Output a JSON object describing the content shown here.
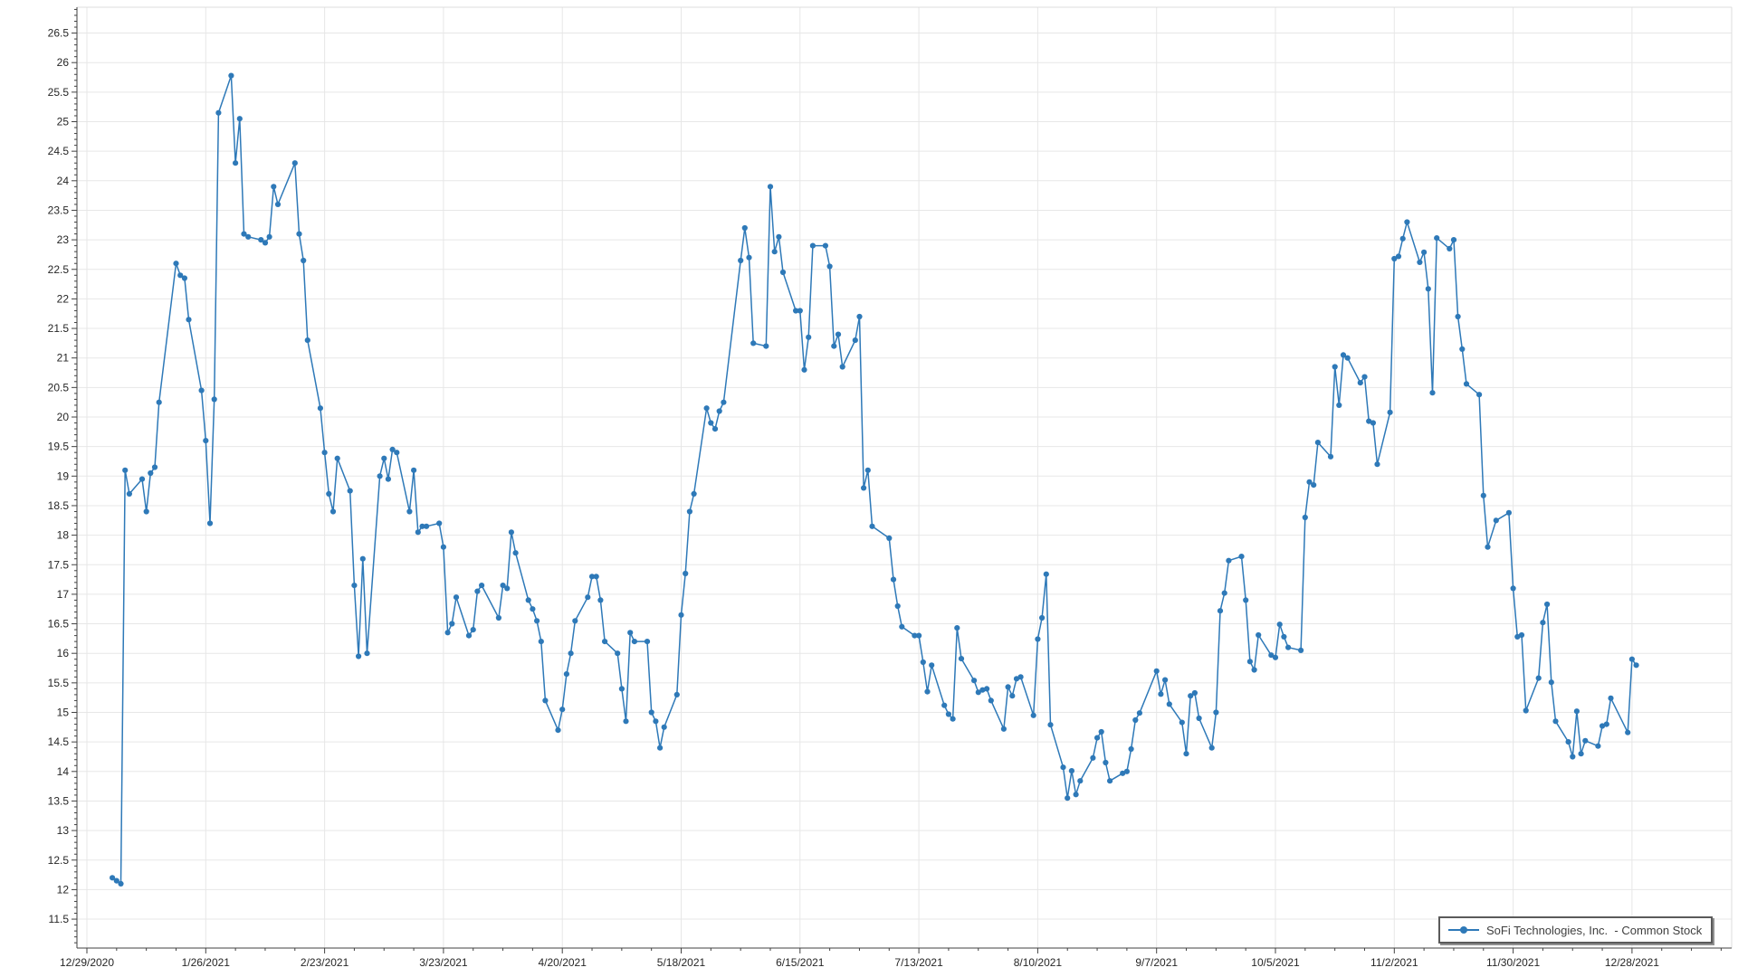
{
  "chart_data": {
    "type": "line",
    "title": "",
    "xlabel": "",
    "ylabel": "",
    "grid": true,
    "legend_position": "bottom-right",
    "x_axis": {
      "tick_labels": [
        "12/29/2020",
        "1/26/2021",
        "2/23/2021",
        "3/23/2021",
        "4/20/2021",
        "5/18/2021",
        "6/15/2021",
        "7/13/2021",
        "8/10/2021",
        "9/7/2021",
        "10/5/2021",
        "11/2/2021",
        "11/30/2021",
        "12/28/2021"
      ],
      "major_tick_interval_days": 28,
      "minor_tick_interval_days": 7
    },
    "y_axis": {
      "label_min": 11.5,
      "label_max": 26.5,
      "label_step": 0.5,
      "minor_tick_step": 0.1,
      "ylim": [
        11.0,
        27.05
      ]
    },
    "series": [
      {
        "name": "SoFi Technologies, Inc.  - Common Stock",
        "color": "#2E79B8",
        "marker": "circle",
        "points": [
          [
            "1/4/2021",
            12.2
          ],
          [
            "1/5/2021",
            12.15
          ],
          [
            "1/6/2021",
            12.1
          ],
          [
            "1/7/2021",
            19.1
          ],
          [
            "1/8/2021",
            18.7
          ],
          [
            "1/11/2021",
            18.95
          ],
          [
            "1/12/2021",
            18.4
          ],
          [
            "1/13/2021",
            19.05
          ],
          [
            "1/14/2021",
            19.15
          ],
          [
            "1/15/2021",
            20.25
          ],
          [
            "1/19/2021",
            22.6
          ],
          [
            "1/20/2021",
            22.4
          ],
          [
            "1/21/2021",
            22.35
          ],
          [
            "1/22/2021",
            21.65
          ],
          [
            "1/25/2021",
            20.45
          ],
          [
            "1/26/2021",
            19.6
          ],
          [
            "1/27/2021",
            18.2
          ],
          [
            "1/28/2021",
            20.3
          ],
          [
            "1/29/2021",
            25.15
          ],
          [
            "2/1/2021",
            25.78
          ],
          [
            "2/2/2021",
            24.3
          ],
          [
            "2/3/2021",
            25.05
          ],
          [
            "2/4/2021",
            23.1
          ],
          [
            "2/5/2021",
            23.05
          ],
          [
            "2/8/2021",
            23.0
          ],
          [
            "2/9/2021",
            22.95
          ],
          [
            "2/10/2021",
            23.05
          ],
          [
            "2/11/2021",
            23.9
          ],
          [
            "2/12/2021",
            23.6
          ],
          [
            "2/16/2021",
            24.3
          ],
          [
            "2/17/2021",
            23.1
          ],
          [
            "2/18/2021",
            22.65
          ],
          [
            "2/19/2021",
            21.3
          ],
          [
            "2/22/2021",
            20.15
          ],
          [
            "2/23/2021",
            19.4
          ],
          [
            "2/24/2021",
            18.7
          ],
          [
            "2/25/2021",
            18.4
          ],
          [
            "2/26/2021",
            19.3
          ],
          [
            "3/1/2021",
            18.75
          ],
          [
            "3/2/2021",
            17.15
          ],
          [
            "3/3/2021",
            15.95
          ],
          [
            "3/4/2021",
            17.6
          ],
          [
            "3/5/2021",
            16.0
          ],
          [
            "3/8/2021",
            19.0
          ],
          [
            "3/9/2021",
            19.3
          ],
          [
            "3/10/2021",
            18.95
          ],
          [
            "3/11/2021",
            19.45
          ],
          [
            "3/12/2021",
            19.4
          ],
          [
            "3/15/2021",
            18.4
          ],
          [
            "3/16/2021",
            19.1
          ],
          [
            "3/17/2021",
            18.05
          ],
          [
            "3/18/2021",
            18.15
          ],
          [
            "3/19/2021",
            18.15
          ],
          [
            "3/22/2021",
            18.2
          ],
          [
            "3/23/2021",
            17.8
          ],
          [
            "3/24/2021",
            16.35
          ],
          [
            "3/25/2021",
            16.5
          ],
          [
            "3/26/2021",
            16.95
          ],
          [
            "3/29/2021",
            16.3
          ],
          [
            "3/30/2021",
            16.4
          ],
          [
            "3/31/2021",
            17.05
          ],
          [
            "4/1/2021",
            17.15
          ],
          [
            "4/5/2021",
            16.6
          ],
          [
            "4/6/2021",
            17.15
          ],
          [
            "4/7/2021",
            17.1
          ],
          [
            "4/8/2021",
            18.05
          ],
          [
            "4/9/2021",
            17.7
          ],
          [
            "4/12/2021",
            16.9
          ],
          [
            "4/13/2021",
            16.75
          ],
          [
            "4/14/2021",
            16.55
          ],
          [
            "4/15/2021",
            16.2
          ],
          [
            "4/16/2021",
            15.2
          ],
          [
            "4/19/2021",
            14.7
          ],
          [
            "4/20/2021",
            15.05
          ],
          [
            "4/21/2021",
            15.65
          ],
          [
            "4/22/2021",
            16.0
          ],
          [
            "4/23/2021",
            16.55
          ],
          [
            "4/26/2021",
            16.95
          ],
          [
            "4/27/2021",
            17.3
          ],
          [
            "4/28/2021",
            17.3
          ],
          [
            "4/29/2021",
            16.9
          ],
          [
            "4/30/2021",
            16.2
          ],
          [
            "5/3/2021",
            16.0
          ],
          [
            "5/4/2021",
            15.4
          ],
          [
            "5/5/2021",
            14.85
          ],
          [
            "5/6/2021",
            16.35
          ],
          [
            "5/7/2021",
            16.2
          ],
          [
            "5/10/2021",
            16.2
          ],
          [
            "5/11/2021",
            15.0
          ],
          [
            "5/12/2021",
            14.85
          ],
          [
            "5/13/2021",
            14.4
          ],
          [
            "5/14/2021",
            14.75
          ],
          [
            "5/17/2021",
            15.3
          ],
          [
            "5/18/2021",
            16.65
          ],
          [
            "5/19/2021",
            17.35
          ],
          [
            "5/20/2021",
            18.4
          ],
          [
            "5/21/2021",
            18.7
          ],
          [
            "5/24/2021",
            20.15
          ],
          [
            "5/25/2021",
            19.9
          ],
          [
            "5/26/2021",
            19.8
          ],
          [
            "5/27/2021",
            20.1
          ],
          [
            "5/28/2021",
            20.25
          ],
          [
            "6/1/2021",
            22.65
          ],
          [
            "6/2/2021",
            23.2
          ],
          [
            "6/3/2021",
            22.7
          ],
          [
            "6/4/2021",
            21.25
          ],
          [
            "6/7/2021",
            21.2
          ],
          [
            "6/8/2021",
            23.9
          ],
          [
            "6/9/2021",
            22.8
          ],
          [
            "6/10/2021",
            23.05
          ],
          [
            "6/11/2021",
            22.45
          ],
          [
            "6/14/2021",
            21.8
          ],
          [
            "6/15/2021",
            21.8
          ],
          [
            "6/16/2021",
            20.8
          ],
          [
            "6/17/2021",
            21.35
          ],
          [
            "6/18/2021",
            22.9
          ],
          [
            "6/21/2021",
            22.9
          ],
          [
            "6/22/2021",
            22.55
          ],
          [
            "6/23/2021",
            21.2
          ],
          [
            "6/24/2021",
            21.4
          ],
          [
            "6/25/2021",
            20.85
          ],
          [
            "6/28/2021",
            21.3
          ],
          [
            "6/29/2021",
            21.7
          ],
          [
            "6/30/2021",
            18.8
          ],
          [
            "7/1/2021",
            19.1
          ],
          [
            "7/2/2021",
            18.15
          ],
          [
            "7/6/2021",
            17.95
          ],
          [
            "7/7/2021",
            17.25
          ],
          [
            "7/8/2021",
            16.8
          ],
          [
            "7/9/2021",
            16.45
          ],
          [
            "7/12/2021",
            16.3
          ],
          [
            "7/13/2021",
            16.3
          ],
          [
            "7/14/2021",
            15.85
          ],
          [
            "7/15/2021",
            15.35
          ],
          [
            "7/16/2021",
            15.8
          ],
          [
            "7/19/2021",
            15.12
          ],
          [
            "7/20/2021",
            14.97
          ],
          [
            "7/21/2021",
            14.89
          ],
          [
            "7/22/2021",
            16.43
          ],
          [
            "7/23/2021",
            15.91
          ],
          [
            "7/26/2021",
            15.54
          ],
          [
            "7/27/2021",
            15.34
          ],
          [
            "7/28/2021",
            15.38
          ],
          [
            "7/29/2021",
            15.4
          ],
          [
            "7/30/2021",
            15.2
          ],
          [
            "8/2/2021",
            14.72
          ],
          [
            "8/3/2021",
            15.43
          ],
          [
            "8/4/2021",
            15.28
          ],
          [
            "8/5/2021",
            15.57
          ],
          [
            "8/6/2021",
            15.6
          ],
          [
            "8/9/2021",
            14.95
          ],
          [
            "8/10/2021",
            16.24
          ],
          [
            "8/11/2021",
            16.6
          ],
          [
            "8/12/2021",
            17.34
          ],
          [
            "8/13/2021",
            14.79
          ],
          [
            "8/16/2021",
            14.07
          ],
          [
            "8/17/2021",
            13.55
          ],
          [
            "8/18/2021",
            14.01
          ],
          [
            "8/19/2021",
            13.61
          ],
          [
            "8/20/2021",
            13.84
          ],
          [
            "8/23/2021",
            14.23
          ],
          [
            "8/24/2021",
            14.57
          ],
          [
            "8/25/2021",
            14.67
          ],
          [
            "8/26/2021",
            14.15
          ],
          [
            "8/27/2021",
            13.84
          ],
          [
            "8/30/2021",
            13.97
          ],
          [
            "8/31/2021",
            14.0
          ],
          [
            "9/1/2021",
            14.38
          ],
          [
            "9/2/2021",
            14.87
          ],
          [
            "9/3/2021",
            14.99
          ],
          [
            "9/7/2021",
            15.7
          ],
          [
            "9/8/2021",
            15.31
          ],
          [
            "9/9/2021",
            15.55
          ],
          [
            "9/10/2021",
            15.14
          ],
          [
            "9/13/2021",
            14.83
          ],
          [
            "9/14/2021",
            14.3
          ],
          [
            "9/15/2021",
            15.28
          ],
          [
            "9/16/2021",
            15.33
          ],
          [
            "9/17/2021",
            14.9
          ],
          [
            "9/20/2021",
            14.4
          ],
          [
            "9/21/2021",
            15.0
          ],
          [
            "9/22/2021",
            16.72
          ],
          [
            "9/23/2021",
            17.02
          ],
          [
            "9/24/2021",
            17.57
          ],
          [
            "9/27/2021",
            17.64
          ],
          [
            "9/28/2021",
            16.9
          ],
          [
            "9/29/2021",
            15.86
          ],
          [
            "9/30/2021",
            15.72
          ],
          [
            "10/1/2021",
            16.31
          ],
          [
            "10/4/2021",
            15.97
          ],
          [
            "10/5/2021",
            15.93
          ],
          [
            "10/6/2021",
            16.49
          ],
          [
            "10/7/2021",
            16.28
          ],
          [
            "10/8/2021",
            16.1
          ],
          [
            "10/11/2021",
            16.05
          ],
          [
            "10/12/2021",
            18.3
          ],
          [
            "10/13/2021",
            18.9
          ],
          [
            "10/14/2021",
            18.85
          ],
          [
            "10/15/2021",
            19.57
          ],
          [
            "10/18/2021",
            19.33
          ],
          [
            "10/19/2021",
            20.85
          ],
          [
            "10/20/2021",
            20.2
          ],
          [
            "10/21/2021",
            21.05
          ],
          [
            "10/22/2021",
            21.0
          ],
          [
            "10/25/2021",
            20.58
          ],
          [
            "10/26/2021",
            20.68
          ],
          [
            "10/27/2021",
            19.93
          ],
          [
            "10/28/2021",
            19.9
          ],
          [
            "10/29/2021",
            19.2
          ],
          [
            "11/1/2021",
            20.08
          ],
          [
            "11/2/2021",
            22.68
          ],
          [
            "11/3/2021",
            22.72
          ],
          [
            "11/4/2021",
            23.02
          ],
          [
            "11/5/2021",
            23.3
          ],
          [
            "11/8/2021",
            22.62
          ],
          [
            "11/9/2021",
            22.79
          ],
          [
            "11/10/2021",
            22.17
          ],
          [
            "11/11/2021",
            20.41
          ],
          [
            "11/12/2021",
            23.03
          ],
          [
            "11/15/2021",
            22.85
          ],
          [
            "11/16/2021",
            23.0
          ],
          [
            "11/17/2021",
            21.7
          ],
          [
            "11/18/2021",
            21.15
          ],
          [
            "11/19/2021",
            20.56
          ],
          [
            "11/22/2021",
            20.38
          ],
          [
            "11/23/2021",
            18.67
          ],
          [
            "11/24/2021",
            17.8
          ],
          [
            "11/26/2021",
            18.25
          ],
          [
            "11/29/2021",
            18.38
          ],
          [
            "11/30/2021",
            17.1
          ],
          [
            "12/1/2021",
            16.28
          ],
          [
            "12/2/2021",
            16.31
          ],
          [
            "12/3/2021",
            15.03
          ],
          [
            "12/6/2021",
            15.58
          ],
          [
            "12/7/2021",
            16.52
          ],
          [
            "12/8/2021",
            16.83
          ],
          [
            "12/9/2021",
            15.51
          ],
          [
            "12/10/2021",
            14.85
          ],
          [
            "12/13/2021",
            14.5
          ],
          [
            "12/14/2021",
            14.25
          ],
          [
            "12/15/2021",
            15.02
          ],
          [
            "12/16/2021",
            14.3
          ],
          [
            "12/17/2021",
            14.52
          ],
          [
            "12/20/2021",
            14.43
          ],
          [
            "12/21/2021",
            14.77
          ],
          [
            "12/22/2021",
            14.8
          ],
          [
            "12/23/2021",
            15.24
          ],
          [
            "12/27/2021",
            14.66
          ],
          [
            "12/28/2021",
            15.9
          ],
          [
            "12/29/2021",
            15.8
          ]
        ]
      }
    ]
  },
  "legend": {
    "label": "SoFi Technologies, Inc.  - Common Stock"
  },
  "colors": {
    "line": "#2E79B8",
    "marker": "#2E79B8",
    "grid": "#e7e7e7",
    "axis": "#424242",
    "tick_label": "#262626",
    "background": "#ffffff",
    "legend_border": "#5a5a5a",
    "legend_shadow": "#909090"
  }
}
